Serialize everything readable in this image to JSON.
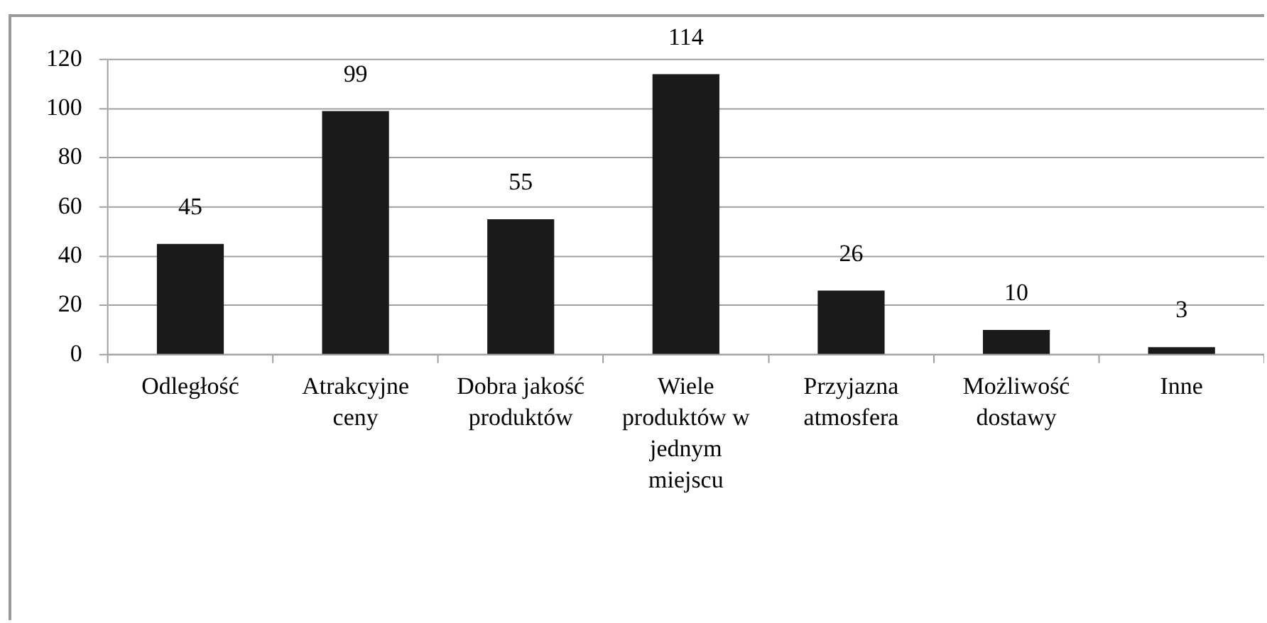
{
  "chart_data": {
    "type": "bar",
    "categories": [
      "Odległość",
      "Atrakcyjne ceny",
      "Dobra jakość produktów",
      "Wiele produktów w jednym miejscu",
      "Przyjazna atmosfera",
      "Możliwość dostawy",
      "Inne"
    ],
    "values": [
      45,
      99,
      55,
      114,
      26,
      10,
      3
    ],
    "color": "#1a1a1a",
    "ylim": [
      0,
      120
    ],
    "yticks": [
      0,
      20,
      40,
      60,
      80,
      100,
      120
    ],
    "grid": "y",
    "data_labels": true
  }
}
